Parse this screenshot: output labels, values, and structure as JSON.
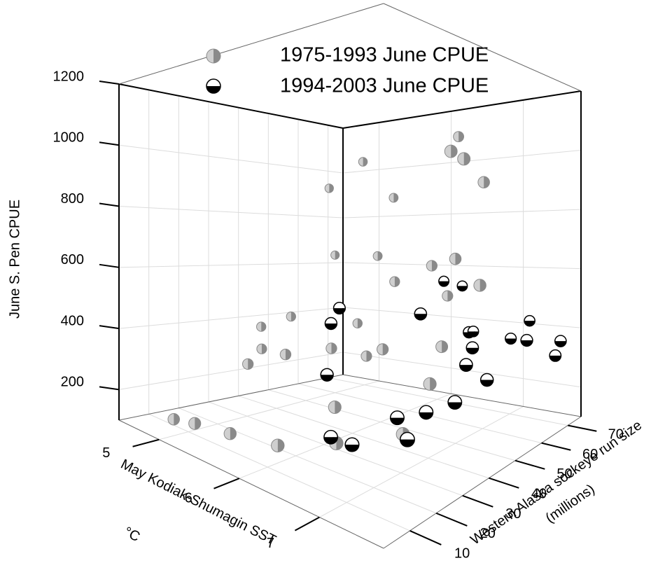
{
  "chart_data": {
    "type": "scatter3d",
    "xlabel": [
      "May Kodiak-Shumagin SST",
      "°C"
    ],
    "ylabel": [
      "Western Alaska sockeye run size",
      "(millions)"
    ],
    "zlabel": "June S. Pen CPUE",
    "xlim": [
      4.5,
      7.8
    ],
    "xticks": [
      5,
      6,
      7
    ],
    "ylim": [
      0,
      75
    ],
    "yticks": [
      10,
      20,
      30,
      40,
      50,
      60,
      70
    ],
    "zlim": [
      100,
      1200
    ],
    "zticks": [
      200,
      400,
      600,
      800,
      1000,
      1200
    ],
    "grid": true,
    "legend": "top",
    "series": [
      {
        "name": "1975-1993 June CPUE",
        "color": "#8a8a8a",
        "x": [
          5.0,
          5.3,
          5.6,
          6.2,
          6.8,
          7.2,
          6.5,
          5.2,
          5.0,
          5.5,
          5.8,
          6.0,
          4.8,
          5.0,
          5.5,
          6.4,
          7.0,
          7.2,
          6.0,
          6.5,
          5.5,
          5.0,
          5.3,
          5.0,
          5.6,
          6.6,
          7.3,
          7.4,
          7.2,
          7.0,
          6.6,
          7.4
        ],
        "y": [
          5,
          4,
          8,
          8,
          12,
          25,
          20,
          25,
          35,
          30,
          38,
          45,
          40,
          45,
          55,
          40,
          45,
          35,
          55,
          55,
          62,
          60,
          62,
          58,
          65,
          62,
          40,
          42,
          55,
          50,
          58,
          48
        ],
        "z": [
          150,
          170,
          160,
          180,
          220,
          230,
          270,
          300,
          320,
          340,
          360,
          330,
          380,
          420,
          400,
          380,
          400,
          330,
          560,
          620,
          640,
          640,
          1000,
          900,
          860,
          1050,
          950,
          930,
          880,
          650,
          520,
          580
        ]
      },
      {
        "name": "1994-2003 June CPUE",
        "color": "#000000",
        "x": [
          6.2,
          6.2,
          6.9,
          6.4,
          6.8,
          7.0,
          7.3,
          7.5,
          7.6,
          7.7,
          7.5,
          7.3,
          7.0,
          6.8,
          7.6,
          7.2,
          7.7,
          7.2,
          6.4,
          6.5,
          7.6,
          7.7
        ],
        "y": [
          30,
          27,
          40,
          20,
          10,
          12,
          20,
          25,
          15,
          30,
          40,
          48,
          55,
          62,
          60,
          65,
          70,
          72,
          62,
          66,
          45,
          68
        ],
        "z": [
          510,
          470,
          500,
          350,
          240,
          230,
          290,
          300,
          270,
          320,
          380,
          400,
          420,
          400,
          400,
          380,
          370,
          420,
          560,
          540,
          330,
          330
        ]
      }
    ]
  }
}
